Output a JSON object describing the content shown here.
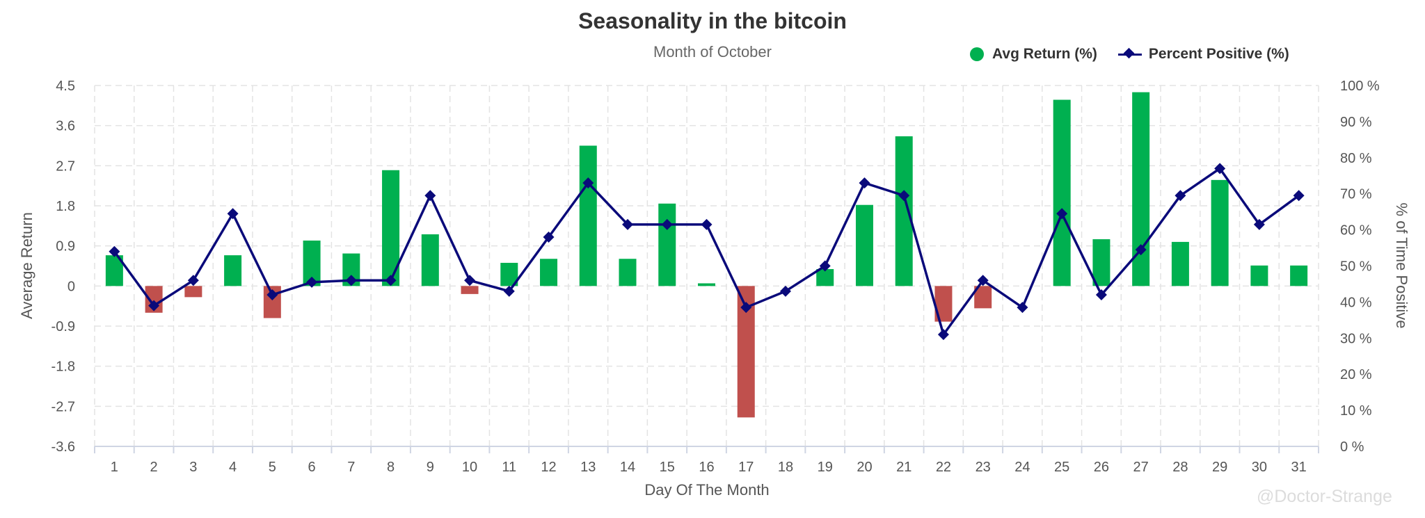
{
  "colors": {
    "positive_bar": "#00b050",
    "negative_bar": "#c0504d",
    "line": "#0a0a7a",
    "grid": "#e3e3e3",
    "axis_text": "#555555"
  },
  "watermark": "@Doctor-Strange",
  "legend": {
    "avg_return": "Avg Return (%)",
    "percent_positive": "Percent Positive (%)"
  },
  "chart_data": {
    "type": "bar",
    "title": "Seasonality in the bitcoin",
    "subtitle": "Month of October",
    "xlabel": "Day Of The Month",
    "ylabel": "Average Return",
    "y2label": "% of Time Positive",
    "categories": [
      "1",
      "2",
      "3",
      "4",
      "5",
      "6",
      "7",
      "8",
      "9",
      "10",
      "11",
      "12",
      "13",
      "14",
      "15",
      "16",
      "17",
      "18",
      "19",
      "20",
      "21",
      "22",
      "23",
      "24",
      "25",
      "26",
      "27",
      "28",
      "29",
      "30",
      "31"
    ],
    "ylim": [
      -3.6,
      4.5
    ],
    "y_ticks": [
      "4.5",
      "3.6",
      "2.7",
      "1.8",
      "0.9",
      "0",
      "-0.9",
      "-1.8",
      "-2.7",
      "-3.6"
    ],
    "y2lim": [
      0,
      100
    ],
    "y2_ticks": [
      "100 %",
      "90 %",
      "80 %",
      "70 %",
      "60 %",
      "50 %",
      "40 %",
      "30 %",
      "20 %",
      "10 %",
      "0 %"
    ],
    "grid": true,
    "legend_position": "top-right",
    "series": [
      {
        "name": "Avg Return (%)",
        "type": "bar",
        "axis": "left",
        "values": [
          0.69,
          -0.6,
          -0.25,
          0.69,
          -0.72,
          1.02,
          0.73,
          2.6,
          1.16,
          -0.18,
          0.52,
          0.61,
          3.15,
          0.61,
          1.85,
          0.06,
          -2.95,
          0.0,
          0.38,
          1.82,
          3.36,
          -0.8,
          -0.5,
          0.0,
          4.18,
          1.05,
          4.35,
          0.99,
          2.38,
          0.46,
          0.46
        ]
      },
      {
        "name": "Percent Positive (%)",
        "type": "line",
        "axis": "right",
        "values": [
          54,
          39,
          46,
          64.5,
          42,
          45.5,
          46,
          46,
          69.5,
          46,
          43,
          58,
          73,
          61.5,
          61.5,
          61.5,
          38.5,
          43,
          50,
          73,
          69.5,
          31,
          46,
          38.5,
          64.5,
          42,
          54.5,
          69.5,
          77,
          61.5,
          69.5
        ]
      }
    ]
  }
}
